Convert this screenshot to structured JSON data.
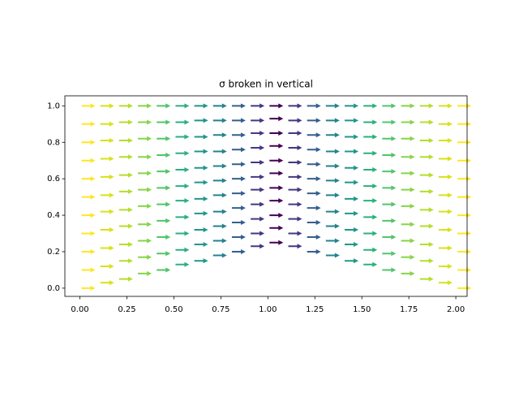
{
  "chart_data": {
    "type": "quiver",
    "title": "σ broken in vertical",
    "x": [
      0.0,
      0.1,
      0.2,
      0.3,
      0.4,
      0.5,
      0.6,
      0.7,
      0.8,
      0.9,
      1.0,
      1.1,
      1.2,
      1.3,
      1.4,
      1.5,
      1.6,
      1.7,
      1.8,
      1.9,
      2.0
    ],
    "y": [
      [
        0.0,
        0.1,
        0.2,
        0.3,
        0.4,
        0.5,
        0.6,
        0.7,
        0.8,
        0.9,
        1.0
      ],
      [
        0.03,
        0.12,
        0.22,
        0.32,
        0.42,
        0.51,
        0.61,
        0.71,
        0.81,
        0.9,
        1.0
      ],
      [
        0.05,
        0.15,
        0.24,
        0.34,
        0.43,
        0.53,
        0.62,
        0.72,
        0.81,
        0.91,
        1.0
      ],
      [
        0.08,
        0.17,
        0.26,
        0.35,
        0.45,
        0.54,
        0.63,
        0.72,
        0.82,
        0.91,
        1.0
      ],
      [
        0.1,
        0.19,
        0.28,
        0.37,
        0.46,
        0.55,
        0.64,
        0.73,
        0.82,
        0.91,
        1.0
      ],
      [
        0.13,
        0.21,
        0.3,
        0.39,
        0.48,
        0.56,
        0.65,
        0.74,
        0.83,
        0.91,
        1.0
      ],
      [
        0.15,
        0.24,
        0.32,
        0.41,
        0.49,
        0.58,
        0.66,
        0.75,
        0.83,
        0.92,
        1.0
      ],
      [
        0.18,
        0.26,
        0.34,
        0.42,
        0.51,
        0.59,
        0.67,
        0.75,
        0.84,
        0.92,
        1.0
      ],
      [
        0.2,
        0.28,
        0.36,
        0.44,
        0.52,
        0.6,
        0.68,
        0.76,
        0.84,
        0.92,
        1.0
      ],
      [
        0.23,
        0.3,
        0.38,
        0.46,
        0.54,
        0.61,
        0.69,
        0.77,
        0.85,
        0.92,
        1.0
      ],
      [
        0.25,
        0.33,
        0.4,
        0.48,
        0.55,
        0.63,
        0.7,
        0.78,
        0.85,
        0.93,
        1.0
      ],
      [
        0.23,
        0.3,
        0.38,
        0.46,
        0.54,
        0.61,
        0.69,
        0.77,
        0.85,
        0.92,
        1.0
      ],
      [
        0.2,
        0.28,
        0.36,
        0.44,
        0.52,
        0.6,
        0.68,
        0.76,
        0.84,
        0.92,
        1.0
      ],
      [
        0.18,
        0.26,
        0.34,
        0.42,
        0.51,
        0.59,
        0.67,
        0.75,
        0.84,
        0.92,
        1.0
      ],
      [
        0.15,
        0.24,
        0.32,
        0.41,
        0.49,
        0.58,
        0.66,
        0.75,
        0.83,
        0.92,
        1.0
      ],
      [
        0.13,
        0.21,
        0.3,
        0.39,
        0.48,
        0.56,
        0.65,
        0.74,
        0.83,
        0.91,
        1.0
      ],
      [
        0.1,
        0.19,
        0.28,
        0.37,
        0.46,
        0.55,
        0.64,
        0.73,
        0.82,
        0.91,
        1.0
      ],
      [
        0.08,
        0.17,
        0.26,
        0.35,
        0.45,
        0.54,
        0.63,
        0.72,
        0.82,
        0.91,
        1.0
      ],
      [
        0.05,
        0.15,
        0.24,
        0.34,
        0.43,
        0.53,
        0.62,
        0.72,
        0.81,
        0.91,
        1.0
      ],
      [
        0.03,
        0.12,
        0.22,
        0.32,
        0.42,
        0.51,
        0.61,
        0.71,
        0.81,
        0.9,
        1.0
      ],
      [
        0.0,
        0.1,
        0.2,
        0.3,
        0.4,
        0.5,
        0.6,
        0.7,
        0.8,
        0.9,
        1.0
      ]
    ],
    "colors": [
      "#fde725",
      "#d8e219",
      "#b5de2b",
      "#86d549",
      "#52c569",
      "#2ab07f",
      "#1f988b",
      "#26828e",
      "#355f8d",
      "#453781",
      "#440154",
      "#453781",
      "#355f8d",
      "#26828e",
      "#1f988b",
      "#2ab07f",
      "#52c569",
      "#86d549",
      "#b5de2b",
      "#d8e219",
      "#fde725"
    ],
    "xlim": [
      -0.08,
      2.06
    ],
    "ylim": [
      -0.045,
      1.055
    ],
    "xticks": [
      {
        "value": 0,
        "label": "0.00"
      },
      0.25,
      {
        "value": 0.5,
        "label": "0.50"
      },
      0.75,
      {
        "value": 1,
        "label": "1.00"
      },
      1.25,
      {
        "value": 1.5,
        "label": "1.50"
      },
      1.75,
      {
        "value": 2,
        "label": "2.00"
      }
    ],
    "yticks": [
      {
        "value": 0,
        "label": "0.0"
      },
      0.2,
      0.4,
      0.6,
      0.8,
      {
        "value": 1,
        "label": "1.0"
      }
    ]
  }
}
